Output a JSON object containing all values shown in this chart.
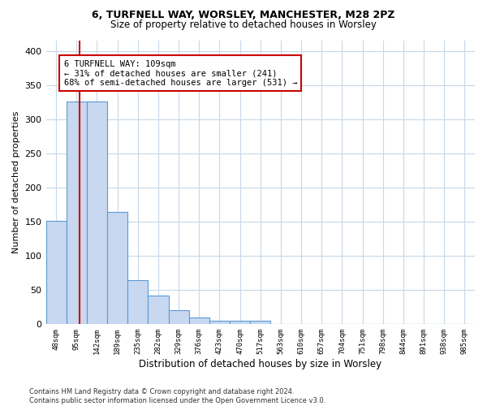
{
  "title1": "6, TURFNELL WAY, WORSLEY, MANCHESTER, M28 2PZ",
  "title2": "Size of property relative to detached houses in Worsley",
  "xlabel": "Distribution of detached houses by size in Worsley",
  "ylabel": "Number of detached properties",
  "footnote": "Contains HM Land Registry data © Crown copyright and database right 2024.\nContains public sector information licensed under the Open Government Licence v3.0.",
  "bin_labels": [
    "48sqm",
    "95sqm",
    "142sqm",
    "189sqm",
    "235sqm",
    "282sqm",
    "329sqm",
    "376sqm",
    "423sqm",
    "470sqm",
    "517sqm",
    "563sqm",
    "610sqm",
    "657sqm",
    "704sqm",
    "751sqm",
    "798sqm",
    "844sqm",
    "891sqm",
    "938sqm",
    "985sqm"
  ],
  "bar_heights": [
    151,
    326,
    326,
    164,
    64,
    42,
    20,
    10,
    5,
    5,
    5,
    0,
    0,
    0,
    0,
    0,
    0,
    0,
    0,
    0,
    0
  ],
  "bar_color": "#c8d8f0",
  "bar_edge_color": "#5b9bd5",
  "red_line_x": 1.15,
  "annotation_line1": "6 TURFNELL WAY: 109sqm",
  "annotation_line2": "← 31% of detached houses are smaller (241)",
  "annotation_line3": "68% of semi-detached houses are larger (531) →",
  "annotation_box_color": "#ffffff",
  "annotation_box_edge": "#cc0000",
  "red_line_color": "#cc0000",
  "ylim": [
    0,
    415
  ],
  "yticks": [
    0,
    50,
    100,
    150,
    200,
    250,
    300,
    350,
    400
  ],
  "bg_color": "#ffffff",
  "grid_color": "#c8d8e8",
  "title1_fontsize": 9,
  "title2_fontsize": 8.5,
  "ylabel_fontsize": 8,
  "xlabel_fontsize": 8.5,
  "xtick_fontsize": 6.5,
  "ytick_fontsize": 8,
  "footnote_fontsize": 6,
  "annot_fontsize": 7.5
}
